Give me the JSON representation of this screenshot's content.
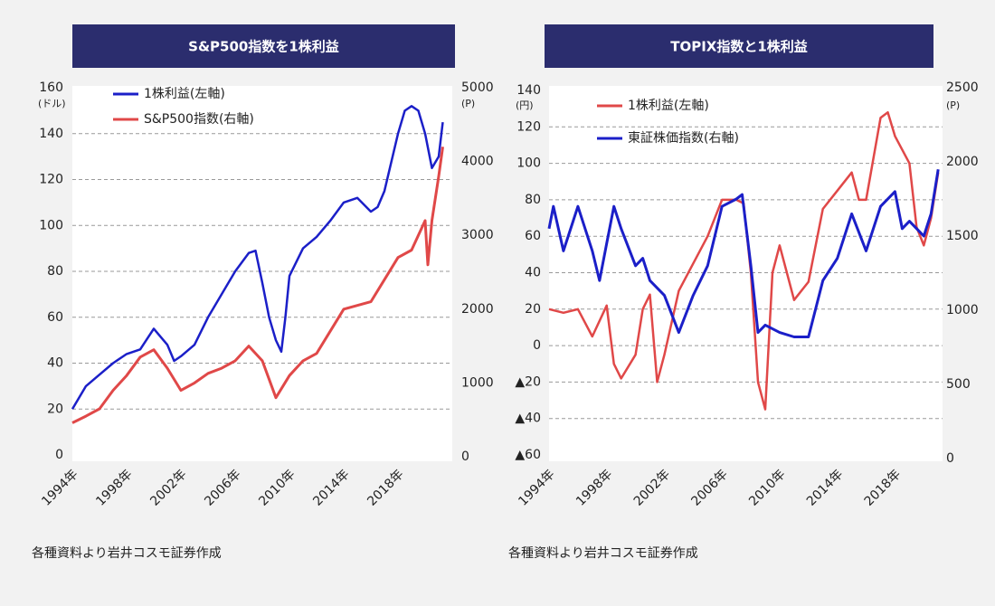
{
  "charts": [
    {
      "type": "line",
      "title": "S&P500指数を1株利益",
      "y_unit": "(ドル)",
      "y2_unit": "(P)",
      "source": "各種資料より岩井コスモ証券作成",
      "xlim": [
        1994,
        2022
      ],
      "xticks": [
        {
          "value": 1994,
          "label": "1994年"
        },
        {
          "value": 1998,
          "label": "1998年"
        },
        {
          "value": 2002,
          "label": "2002年"
        },
        {
          "value": 2006,
          "label": "2006年"
        },
        {
          "value": 2010,
          "label": "2010年"
        },
        {
          "value": 2014,
          "label": "2014年"
        },
        {
          "value": 2018,
          "label": "2018年"
        }
      ],
      "ylim": [
        0,
        160
      ],
      "yticks": [
        0,
        20,
        40,
        60,
        80,
        100,
        120,
        140,
        160
      ],
      "y2lim": [
        0,
        5000
      ],
      "y2ticks": [
        0,
        1000,
        2000,
        3000,
        4000,
        5000
      ],
      "grid": true,
      "series": [
        {
          "name": "1株利益(左軸)",
          "color": "#1b1fc8",
          "x": [
            1994,
            1995,
            1996,
            1997,
            1998,
            1999,
            2000,
            2001,
            2001.5,
            2002,
            2003,
            2004,
            2005,
            2006,
            2007,
            2007.5,
            2008,
            2008.5,
            2009,
            2009.4,
            2009.7,
            2010,
            2011,
            2012,
            2013,
            2014,
            2015,
            2016,
            2016.5,
            2017,
            2018,
            2018.5,
            2019,
            2019.5,
            2020,
            2020.5,
            2021,
            2021.3
          ],
          "values": [
            20,
            30,
            35,
            40,
            44,
            46,
            55,
            48,
            41,
            43,
            48,
            60,
            70,
            80,
            88,
            89,
            75,
            60,
            50,
            45,
            60,
            78,
            90,
            95,
            102,
            110,
            112,
            106,
            108,
            115,
            140,
            150,
            152,
            150,
            140,
            125,
            130,
            145
          ]
        },
        {
          "name": "S&P500指数(右軸)",
          "color": "#e04848",
          "axis": "y2",
          "x": [
            1994,
            1995,
            1996,
            1997,
            1998,
            1999,
            2000,
            2001,
            2002,
            2003,
            2004,
            2005,
            2006,
            2007,
            2008,
            2009,
            2010,
            2011,
            2012,
            2013,
            2014,
            2015,
            2016,
            2017,
            2018,
            2019,
            2020,
            2020.2,
            2020.5,
            2021,
            2021.3
          ],
          "values": [
            460,
            550,
            650,
            900,
            1100,
            1350,
            1450,
            1200,
            900,
            1000,
            1130,
            1200,
            1300,
            1500,
            1300,
            800,
            1100,
            1300,
            1400,
            1700,
            2000,
            2050,
            2100,
            2400,
            2700,
            2800,
            3200,
            2600,
            3200,
            3800,
            4200
          ]
        }
      ]
    },
    {
      "type": "line",
      "title": "TOPIX指数と1株利益",
      "y_unit": "(円)",
      "y2_unit": "(P)",
      "source": "各種資料より岩井コスモ証券作成",
      "xlim": [
        1994,
        2021.3
      ],
      "xticks": [
        {
          "value": 1994,
          "label": "1994年"
        },
        {
          "value": 1998,
          "label": "1998年"
        },
        {
          "value": 2002,
          "label": "2002年"
        },
        {
          "value": 2006,
          "label": "2006年"
        },
        {
          "value": 2010,
          "label": "2010年"
        },
        {
          "value": 2014,
          "label": "2014年"
        },
        {
          "value": 2018,
          "label": "2018年"
        }
      ],
      "ylim": [
        -60,
        140
      ],
      "yticks": [
        {
          "value": -60,
          "label": "▲60"
        },
        {
          "value": -40,
          "label": "▲40"
        },
        {
          "value": -20,
          "label": "▲20"
        },
        0,
        20,
        40,
        60,
        80,
        100,
        120,
        140
      ],
      "y2lim": [
        0,
        2500
      ],
      "y2ticks": [
        0,
        500,
        1000,
        1500,
        2000,
        2500
      ],
      "grid": true,
      "series": [
        {
          "name": "1株利益(左軸)",
          "color": "#e04848",
          "x": [
            1994,
            1995,
            1996,
            1997,
            1998,
            1998.5,
            1999,
            2000,
            2000.5,
            2001,
            2001.5,
            2002,
            2003,
            2004,
            2005,
            2006,
            2007,
            2007.5,
            2008,
            2008.5,
            2009,
            2009.5,
            2010,
            2010.5,
            2011,
            2012,
            2013,
            2014,
            2015,
            2015.5,
            2016,
            2017,
            2017.5,
            2018,
            2019,
            2019.5,
            2020,
            2020.5,
            2021
          ],
          "values": [
            20,
            18,
            20,
            5,
            22,
            -10,
            -18,
            -5,
            20,
            28,
            -20,
            -5,
            30,
            45,
            60,
            80,
            80,
            78,
            40,
            -20,
            -35,
            40,
            55,
            40,
            25,
            35,
            75,
            85,
            95,
            80,
            80,
            125,
            128,
            115,
            100,
            65,
            55,
            70,
            95
          ]
        },
        {
          "name": "東証株価指数(右軸)",
          "color": "#1b1fc8",
          "axis": "y2",
          "x": [
            1994,
            1994.3,
            1995,
            1996,
            1997,
            1997.5,
            1998,
            1998.5,
            1999,
            2000,
            2000.5,
            2001,
            2002,
            2003,
            2004,
            2005,
            2006,
            2007,
            2007.4,
            2008,
            2008.5,
            2009,
            2010,
            2011,
            2012,
            2013,
            2014,
            2015,
            2016,
            2017,
            2018,
            2018.5,
            2019,
            2020,
            2020.5,
            2021
          ],
          "values": [
            1550,
            1700,
            1400,
            1700,
            1400,
            1200,
            1450,
            1700,
            1550,
            1300,
            1350,
            1200,
            1100,
            850,
            1100,
            1300,
            1700,
            1750,
            1780,
            1300,
            850,
            900,
            850,
            820,
            820,
            1200,
            1350,
            1650,
            1400,
            1700,
            1800,
            1550,
            1600,
            1500,
            1650,
            1950
          ]
        }
      ]
    }
  ]
}
